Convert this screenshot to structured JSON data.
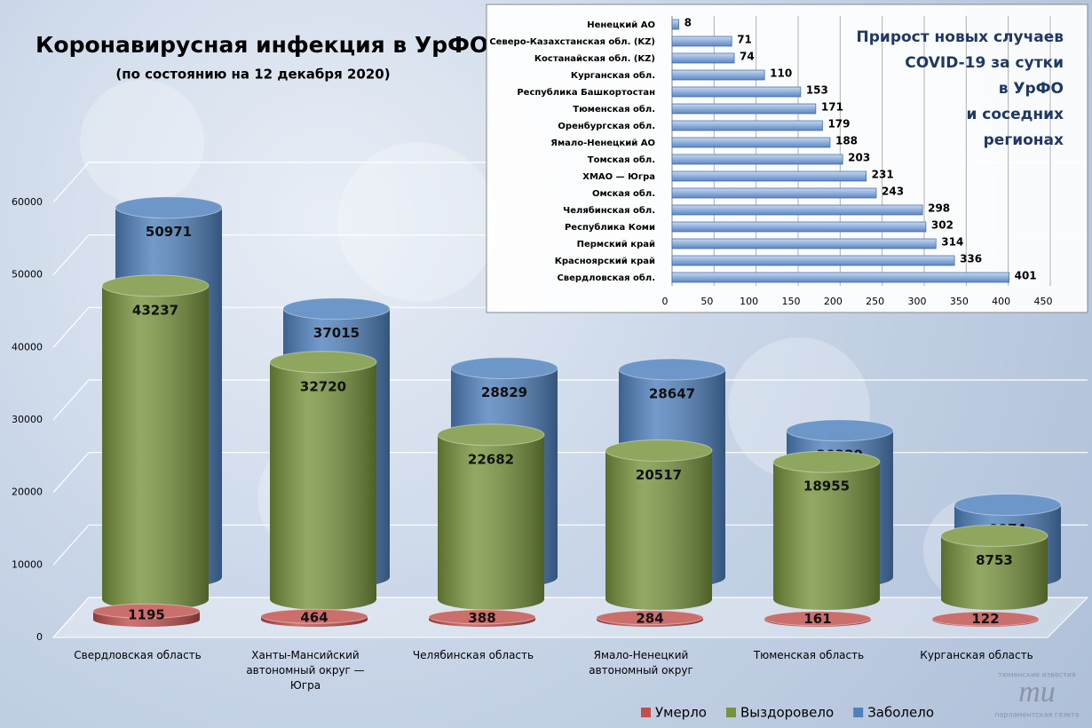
{
  "chart_data": [
    {
      "type": "bar",
      "title": "Коронавирусная инфекция в УрФО",
      "subtitle": "(по состоянию на 12 декабря 2020)",
      "categories": [
        "Свердловская область",
        "Ханты-Мансийский\nавтономный округ —\nЮгра",
        "Челябинская область",
        "Ямало-Ненецкий\nавтономный округ",
        "Тюменская область",
        "Курганская область"
      ],
      "series": [
        {
          "name": "Умерло",
          "color": "#c0504d",
          "values": [
            1195,
            464,
            388,
            284,
            161,
            122
          ]
        },
        {
          "name": "Выздоровело",
          "color": "#77933c",
          "values": [
            43237,
            32720,
            22682,
            20517,
            18955,
            8753
          ]
        },
        {
          "name": "Заболело",
          "color": "#4f81bd",
          "values": [
            50971,
            37015,
            28829,
            28647,
            20229,
            9974
          ]
        }
      ],
      "ylim": [
        0,
        60000
      ],
      "yticks": [
        0,
        10000,
        20000,
        30000,
        40000,
        50000,
        60000
      ],
      "grid": true,
      "legend": "bottom-right"
    },
    {
      "type": "barh",
      "title": "Прирост новых случаев\nCOVID-19 за сутки\nв УрФО\nи соседних\nрегионах",
      "categories": [
        "Ненецкий АО",
        "Северо-Казахстанская обл. (KZ)",
        "Костанайская обл. (KZ)",
        "Курганская обл.",
        "Республика Башкортостан",
        "Тюменская обл.",
        "Оренбургская обл.",
        "Ямало-Ненецкий АО",
        "Томская обл.",
        "ХМАО — Югра",
        "Омская обл.",
        "Челябинская обл.",
        "Республика Коми",
        "Пермский край",
        "Красноярский край",
        "Свердловская обл."
      ],
      "values": [
        8,
        71,
        74,
        110,
        153,
        171,
        179,
        188,
        203,
        231,
        243,
        298,
        302,
        314,
        336,
        401
      ],
      "color": "#7ea6dc",
      "xlim": [
        0,
        450
      ],
      "xticks": [
        0,
        50,
        100,
        150,
        200,
        250,
        300,
        350,
        400,
        450
      ],
      "grid": true
    }
  ],
  "logo": {
    "top": "тюменские известия",
    "mark": "ти",
    "bottom": "парламентская газета"
  }
}
